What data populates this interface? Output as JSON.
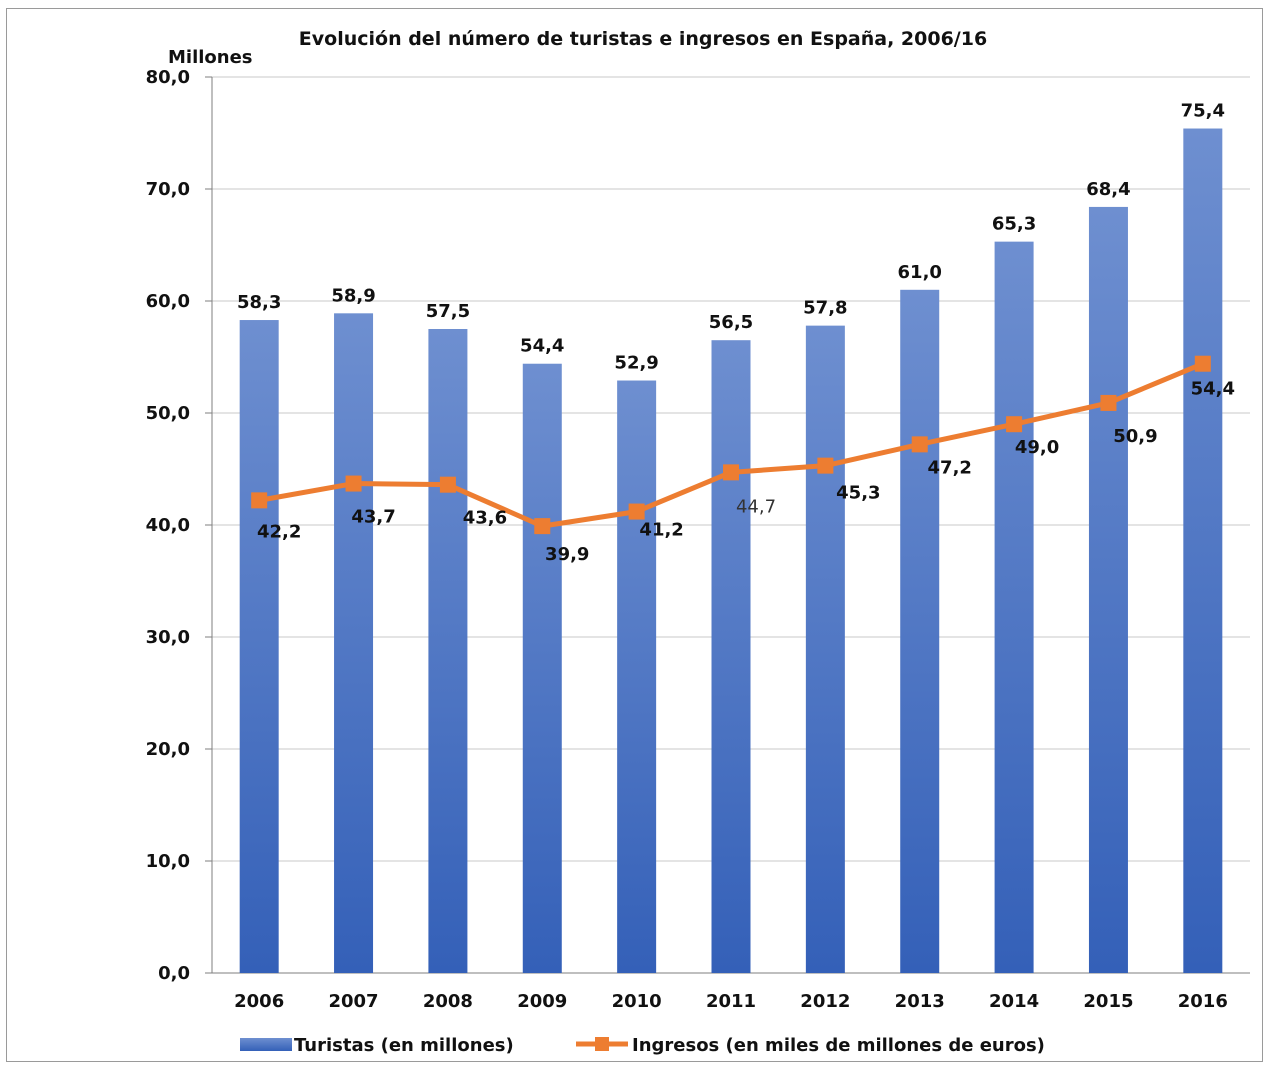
{
  "chart_data": {
    "type": "bar",
    "title": "Evolución del número de turistas e ingresos en España, 2006/16",
    "unit_label": "Millones",
    "categories": [
      "2006",
      "2007",
      "2008",
      "2009",
      "2010",
      "2011",
      "2012",
      "2013",
      "2014",
      "2015",
      "2016"
    ],
    "ylim": [
      0,
      80
    ],
    "yticks": [
      "0,0",
      "10,0",
      "20,0",
      "30,0",
      "40,0",
      "50,0",
      "60,0",
      "70,0",
      "80,0"
    ],
    "grid": true,
    "legend_position": "bottom",
    "series": [
      {
        "name": "Turistas (en millones)",
        "type": "bar",
        "color": "#4472c4",
        "values": [
          58.3,
          58.9,
          57.5,
          54.4,
          52.9,
          56.5,
          57.8,
          61.0,
          65.3,
          68.4,
          75.4
        ],
        "labels": [
          "58,3",
          "58,9",
          "57,5",
          "54,4",
          "52,9",
          "56,5",
          "57,8",
          "61,0",
          "65,3",
          "68,4",
          "75,4"
        ]
      },
      {
        "name": "Ingresos (en miles de millones de euros)",
        "type": "line",
        "color": "#ed7d31",
        "values": [
          42.2,
          43.7,
          43.6,
          39.9,
          41.2,
          44.7,
          45.3,
          47.2,
          49.0,
          50.9,
          54.4
        ],
        "labels": [
          "42,2",
          "43,7",
          "43,6",
          "39,9",
          "41,2",
          "44,7",
          "45,3",
          "47,2",
          "49,0",
          "50,9",
          "54,4"
        ]
      }
    ]
  }
}
